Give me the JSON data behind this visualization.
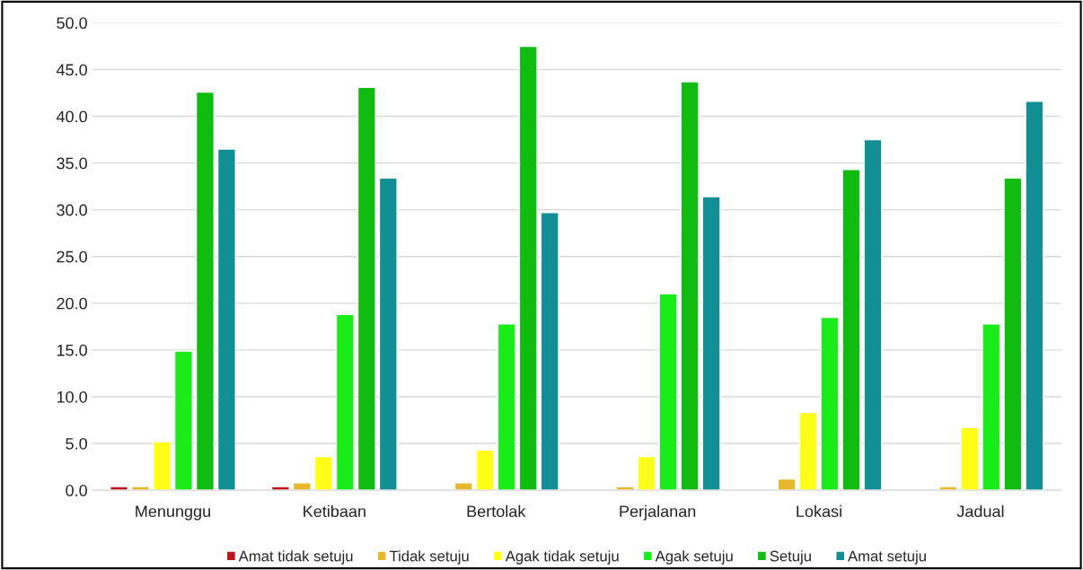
{
  "chart_data": {
    "type": "bar",
    "categories": [
      "Menunggu",
      "Ketibaan",
      "Bertolak",
      "Perjalanan",
      "Lokasi",
      "Jadual"
    ],
    "series": [
      {
        "name": "Amat tidak setuju",
        "color": "#c0141c",
        "values": [
          0.4,
          0.4,
          null,
          null,
          null,
          null
        ]
      },
      {
        "name": "Tidak setuju",
        "color": "#e6b92c",
        "values": [
          0.4,
          0.8,
          0.8,
          0.4,
          1.2,
          0.4
        ]
      },
      {
        "name": "Agak tidak setuju",
        "color": "#ffff1a",
        "values": [
          5.2,
          3.6,
          4.3,
          3.6,
          8.3,
          6.7
        ]
      },
      {
        "name": "Agak setuju",
        "color": "#1aec1a",
        "values": [
          14.9,
          18.8,
          17.8,
          21.0,
          18.5,
          17.8
        ]
      },
      {
        "name": "Setuju",
        "color": "#10bc10",
        "values": [
          42.6,
          43.1,
          47.5,
          43.7,
          34.3,
          33.4
        ]
      },
      {
        "name": "Amat setuju",
        "color": "#118f94",
        "values": [
          36.5,
          33.4,
          29.7,
          31.4,
          37.5,
          41.6
        ]
      }
    ],
    "ylim": [
      0,
      50
    ],
    "yticks": [
      {
        "value": 0,
        "label": "0.0"
      },
      {
        "value": 5,
        "label": "5.0"
      },
      {
        "value": 10,
        "label": "10.0"
      },
      {
        "value": 15,
        "label": "15.0"
      },
      {
        "value": 20,
        "label": "20.0"
      },
      {
        "value": 25,
        "label": "25.0"
      },
      {
        "value": 30,
        "label": "30.0"
      },
      {
        "value": 35,
        "label": "35.0"
      },
      {
        "value": 40,
        "label": "40.0"
      },
      {
        "value": 45,
        "label": "45.0"
      },
      {
        "value": 50,
        "label": "50.0"
      }
    ],
    "grid": "y",
    "legend": "bottom"
  }
}
